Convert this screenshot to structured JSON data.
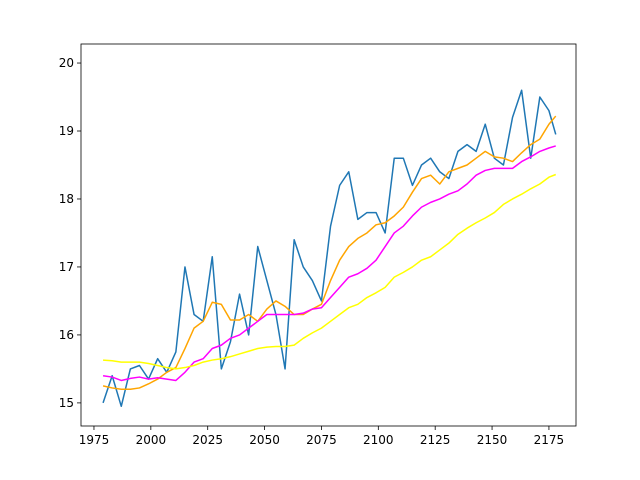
{
  "chart_data": {
    "type": "line",
    "x": [
      1979,
      1983,
      1987,
      1991,
      1995,
      1999,
      2003,
      2007,
      2011,
      2015,
      2019,
      2023,
      2027,
      2031,
      2035,
      2039,
      2043,
      2047,
      2051,
      2055,
      2059,
      2063,
      2067,
      2071,
      2075,
      2079,
      2083,
      2087,
      2091,
      2095,
      2099,
      2103,
      2107,
      2111,
      2115,
      2119,
      2123,
      2127,
      2131,
      2135,
      2139,
      2143,
      2147,
      2151,
      2155,
      2159,
      2163,
      2167,
      2171,
      2175,
      2178
    ],
    "series": [
      {
        "color": "#1f77b4",
        "values": [
          15.0,
          15.4,
          14.95,
          15.5,
          15.55,
          15.35,
          15.65,
          15.45,
          15.75,
          17.0,
          16.3,
          16.2,
          17.15,
          15.5,
          15.9,
          16.6,
          16.0,
          17.3,
          16.8,
          16.3,
          15.5,
          17.4,
          17.0,
          16.8,
          16.5,
          17.6,
          18.2,
          18.4,
          17.7,
          17.8,
          17.8,
          17.5,
          18.6,
          18.6,
          18.2,
          18.5,
          18.6,
          18.4,
          18.3,
          18.7,
          18.8,
          18.7,
          19.1,
          18.6,
          18.5,
          19.2,
          19.6,
          18.6,
          19.5,
          19.3,
          18.95
        ]
      },
      {
        "color": "#ffa500",
        "values": [
          15.25,
          15.22,
          15.2,
          15.2,
          15.22,
          15.28,
          15.35,
          15.45,
          15.52,
          15.8,
          16.1,
          16.2,
          16.48,
          16.45,
          16.22,
          16.22,
          16.3,
          16.2,
          16.38,
          16.5,
          16.42,
          16.3,
          16.3,
          16.38,
          16.45,
          16.8,
          17.1,
          17.3,
          17.42,
          17.5,
          17.62,
          17.65,
          17.75,
          17.88,
          18.1,
          18.3,
          18.35,
          18.22,
          18.4,
          18.45,
          18.5,
          18.6,
          18.7,
          18.62,
          18.6,
          18.55,
          18.68,
          18.8,
          18.88,
          19.1,
          19.22
        ]
      },
      {
        "color": "#ff00ff",
        "values": [
          15.4,
          15.38,
          15.33,
          15.36,
          15.38,
          15.35,
          15.37,
          15.35,
          15.33,
          15.45,
          15.6,
          15.65,
          15.8,
          15.85,
          15.95,
          16.0,
          16.1,
          16.2,
          16.3,
          16.3,
          16.3,
          16.3,
          16.32,
          16.38,
          16.4,
          16.55,
          16.7,
          16.85,
          16.9,
          16.98,
          17.1,
          17.3,
          17.5,
          17.6,
          17.75,
          17.88,
          17.95,
          18.0,
          18.07,
          18.12,
          18.22,
          18.35,
          18.42,
          18.45,
          18.45,
          18.45,
          18.55,
          18.62,
          18.7,
          18.75,
          18.78
        ]
      },
      {
        "color": "#ffff00",
        "values": [
          15.63,
          15.62,
          15.6,
          15.6,
          15.6,
          15.58,
          15.55,
          15.52,
          15.5,
          15.52,
          15.55,
          15.6,
          15.63,
          15.65,
          15.68,
          15.72,
          15.76,
          15.8,
          15.82,
          15.83,
          15.83,
          15.85,
          15.95,
          16.03,
          16.1,
          16.2,
          16.3,
          16.4,
          16.45,
          16.55,
          16.62,
          16.7,
          16.85,
          16.92,
          17.0,
          17.1,
          17.15,
          17.25,
          17.35,
          17.48,
          17.57,
          17.65,
          17.72,
          17.8,
          17.92,
          18.0,
          18.07,
          18.15,
          18.22,
          18.32,
          18.36
        ]
      }
    ],
    "xlim": [
      1969.3,
      2186.9
    ],
    "ylim": [
      14.66,
      20.28
    ],
    "xticks": [
      1975,
      2000,
      2025,
      2050,
      2075,
      2100,
      2125,
      2150,
      2175
    ],
    "yticks": [
      15,
      16,
      17,
      18,
      19,
      20
    ],
    "grid": false
  }
}
